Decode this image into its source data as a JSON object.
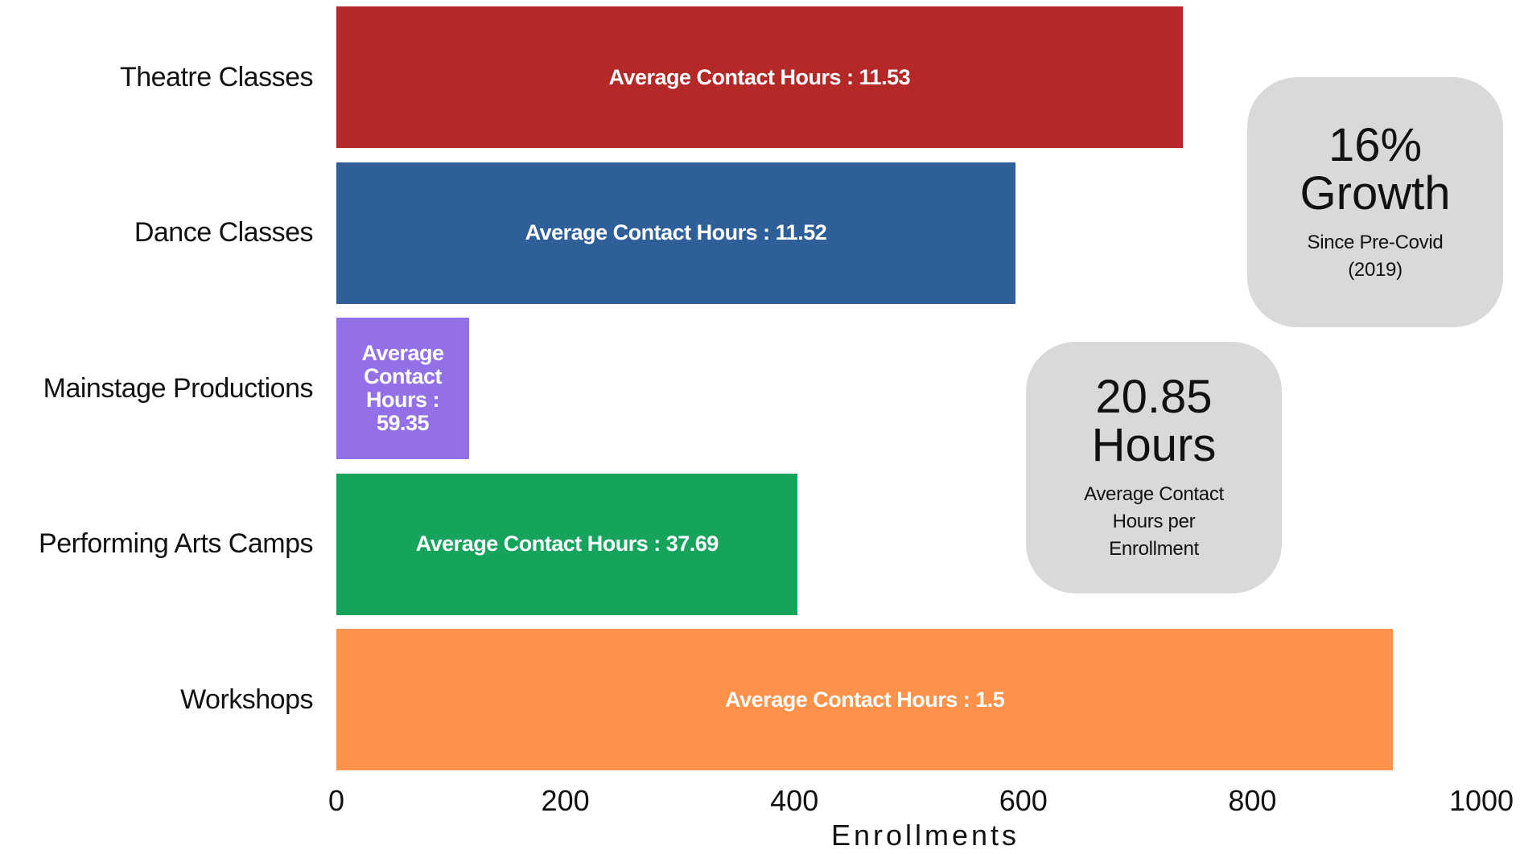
{
  "chart_data": {
    "type": "bar",
    "orientation": "horizontal",
    "x_label": "Enrollments",
    "categories": [
      "Theatre Classes",
      "Dance Classes",
      "Mainstage Productions",
      "Performing Arts Camps",
      "Workshops"
    ],
    "values": [
      739,
      593,
      116,
      403,
      923
    ],
    "colors": [
      "#b52828",
      "#2f5f98",
      "#9370e8",
      "#16a35c",
      "#fe924b"
    ],
    "bar_labels": [
      "Average Contact Hours : 11.53",
      "Average Contact Hours : 11.52",
      "Average Contact Hours : 59.35",
      "Average Contact Hours : 37.69",
      "Average Contact Hours : 1.5"
    ],
    "xlim": [
      0,
      1000
    ],
    "xticks": [
      0,
      200,
      400,
      600,
      800,
      1000
    ],
    "callouts": [
      {
        "headline": "16%",
        "subhead": "Growth",
        "caption": "Since Pre-Covid (2019)"
      },
      {
        "headline": "20.85",
        "subhead": "Hours",
        "caption": "Average Contact Hours per Enrollment"
      }
    ]
  }
}
